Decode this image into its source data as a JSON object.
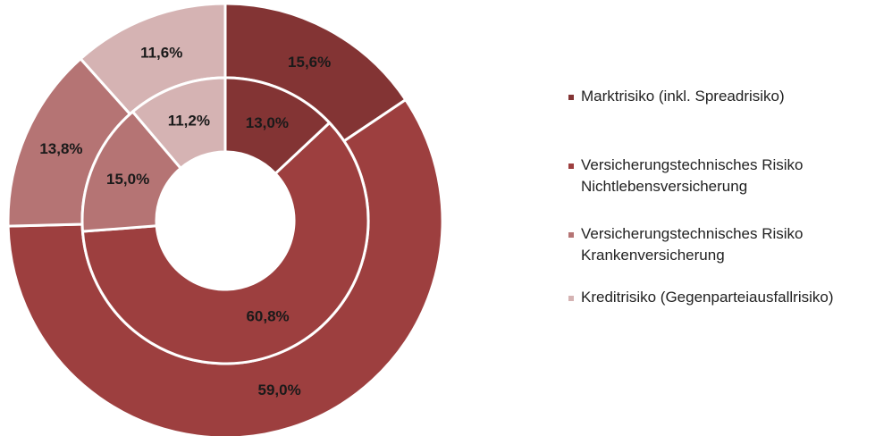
{
  "chart_data": {
    "type": "donut",
    "categories": [
      "Marktrisiko (inkl. Spreadrisiko)",
      "Versicherungstechnisches Risiko Nichtlebensversicherung",
      "Versicherungstechnisches Risiko Krankenversicherung",
      "Kreditrisiko (Gegenparteiausfallrisiko)"
    ],
    "colors": [
      "#833434",
      "#9d3f3f",
      "#b57474",
      "#d5b3b3"
    ],
    "series": [
      {
        "values": [
          15.6,
          59.0,
          13.8,
          11.6
        ],
        "value_labels": [
          "15,6%",
          "59,0%",
          "13,8%",
          "11,6%"
        ]
      },
      {
        "values": [
          13.0,
          60.8,
          15.0,
          11.2
        ],
        "value_labels": [
          "13,0%",
          "60,8%",
          "15,0%",
          "11,2%"
        ]
      }
    ],
    "legend": "right"
  }
}
